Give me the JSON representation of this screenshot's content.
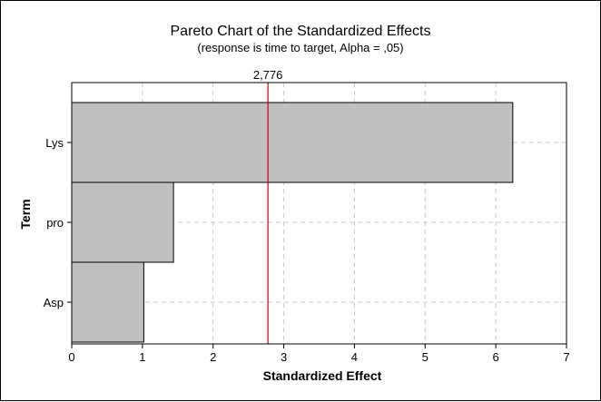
{
  "chart_data": {
    "type": "bar",
    "orientation": "horizontal",
    "title": "Pareto Chart of the Standardized Effects",
    "subtitle": "(response is time to target, Alpha = ,05)",
    "xlabel": "Standardized Effect",
    "ylabel": "Term",
    "categories": [
      "Lys",
      "pro",
      "Asp"
    ],
    "values": [
      6.24,
      1.44,
      1.02
    ],
    "xlim": [
      0,
      7
    ],
    "xticks": [
      "0",
      "1",
      "2",
      "3",
      "4",
      "5",
      "6",
      "7"
    ],
    "reference_line": {
      "value": 2.776,
      "label": "2,776",
      "color": "#cc0000"
    },
    "bar_color": "#c0c0c0",
    "grid": true
  }
}
